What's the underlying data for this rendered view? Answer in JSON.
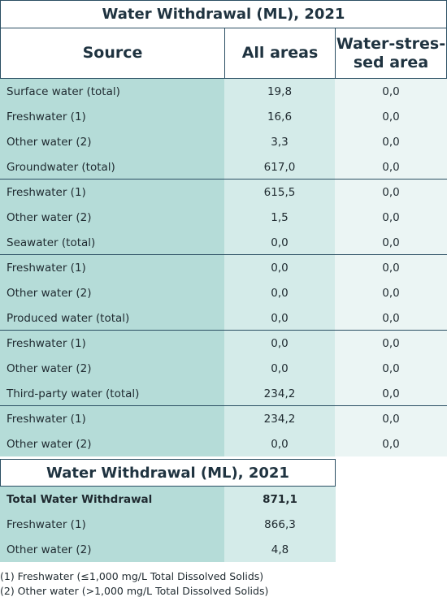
{
  "table1": {
    "title": "Water Withdrawal (ML), 2021",
    "headers": {
      "source": "Source",
      "all_areas": "All areas",
      "water_stressed": "Water-stres-\nsed area"
    },
    "rows": [
      {
        "label": "Surface water (total)",
        "all": "19,8",
        "ws": "0,0"
      },
      {
        "label": "Freshwater (1)",
        "all": "16,6",
        "ws": "0,0"
      },
      {
        "label": "Other water (2)",
        "all": "3,3",
        "ws": "0,0"
      },
      {
        "label": "Groundwater (total)",
        "all": "617,0",
        "ws": "0,0"
      },
      {
        "label": "Freshwater (1)",
        "all": "615,5",
        "ws": "0,0"
      },
      {
        "label": "Other water (2)",
        "all": "1,5",
        "ws": "0,0"
      },
      {
        "label": "Seawater (total)",
        "all": "0,0",
        "ws": "0,0"
      },
      {
        "label": "Freshwater (1)",
        "all": "0,0",
        "ws": "0,0"
      },
      {
        "label": "Other water (2)",
        "all": "0,0",
        "ws": "0,0"
      },
      {
        "label": "Produced water (total)",
        "all": "0,0",
        "ws": "0,0"
      },
      {
        "label": "Freshwater (1)",
        "all": "0,0",
        "ws": "0,0"
      },
      {
        "label": "Other water (2)",
        "all": "0,0",
        "ws": "0,0"
      },
      {
        "label": "Third-party water (total)",
        "all": "234,2",
        "ws": "0,0"
      },
      {
        "label": "Freshwater (1)",
        "all": "234,2",
        "ws": "0,0"
      },
      {
        "label": "Other water (2)",
        "all": "0,0",
        "ws": "0,0"
      }
    ]
  },
  "table2": {
    "title": "Water Withdrawal (ML), 2021",
    "rows": [
      {
        "label": "Total Water Withdrawal",
        "value": "871,1"
      },
      {
        "label": "Freshwater (1)",
        "value": "866,3"
      },
      {
        "label": "Other water (2)",
        "value": "4,8"
      }
    ]
  },
  "notes": [
    "(1) Freshwater (≤1,000 mg/L Total Dissolved Solids)",
    "(2) Other water (>1,000 mg/L Total Dissolved Solids)"
  ]
}
